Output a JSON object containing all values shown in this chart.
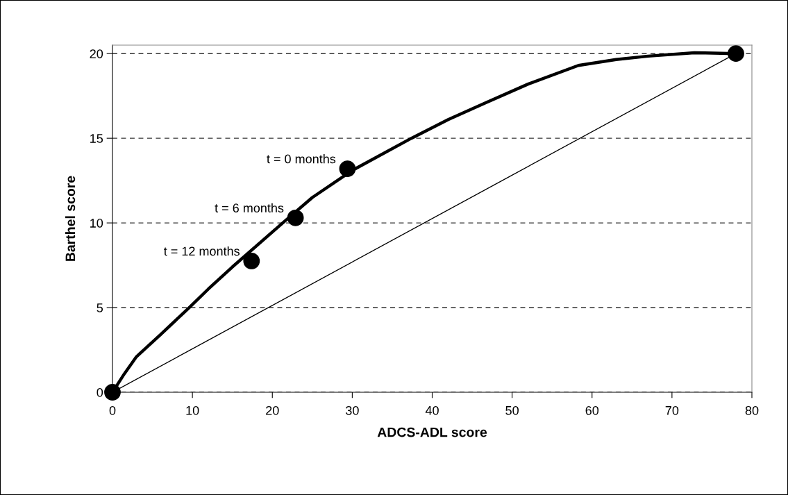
{
  "chart_data": {
    "type": "line",
    "xlabel": "ADCS-ADL score",
    "ylabel": "Barthel score",
    "xlim": [
      0,
      80
    ],
    "xticks": [
      0,
      10,
      20,
      30,
      40,
      50,
      60,
      70,
      80
    ],
    "ylim": [
      0,
      20.5
    ],
    "yticks": [
      0,
      5,
      10,
      15,
      20
    ],
    "grid": "y",
    "series": [
      {
        "color": "#000000",
        "line_style": "solid",
        "marker": "none",
        "x": [
          0,
          1.5,
          3,
          6,
          9.6,
          12,
          15,
          21.3,
          25,
          30,
          37.4,
          42,
          46.7,
          52,
          58.3,
          63,
          67,
          72.8,
          78
        ],
        "values": [
          0,
          1.1,
          2.1,
          3.4,
          5,
          6.1,
          7.4,
          10,
          11.5,
          13.1,
          15,
          16.1,
          17.1,
          18.2,
          19.3,
          19.65,
          19.85,
          20.05,
          20
        ]
      },
      {
        "color": "#000000",
        "line_style": "solid",
        "marker": "none",
        "x": [
          0,
          78
        ],
        "values": [
          0,
          20
        ]
      },
      {
        "type": "scatter",
        "color": "#000000",
        "marker": "circle",
        "x": [
          0,
          17.4,
          22.9,
          29.4,
          78
        ],
        "values": [
          0,
          7.75,
          10.3,
          13.2,
          20
        ]
      }
    ],
    "annotations": [
      {
        "text": "t = 0 months",
        "x": 29.4,
        "y": 13.2
      },
      {
        "text": "t = 6 months",
        "x": 22.9,
        "y": 10.3
      },
      {
        "text": "t = 12 months",
        "x": 17.4,
        "y": 7.75
      }
    ]
  }
}
